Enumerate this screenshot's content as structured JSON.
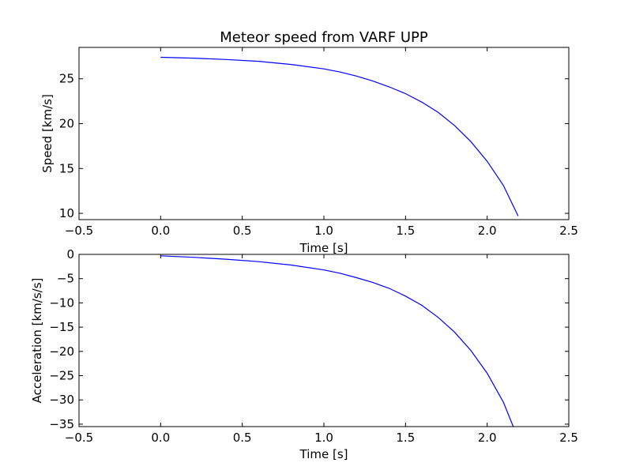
{
  "figure": {
    "title": "Meteor speed from  VARF UPP"
  },
  "chart_data": [
    {
      "type": "line",
      "title": "Meteor speed from  VARF UPP",
      "xlabel": "Time [s]",
      "ylabel": "Speed [km/s]",
      "xlim": [
        -0.5,
        2.5
      ],
      "ylim": [
        9.3,
        28.5
      ],
      "xticks": [
        -0.5,
        0.0,
        0.5,
        1.0,
        1.5,
        2.0,
        2.5
      ],
      "xtick_labels": [
        "−0.5",
        "0.0",
        "0.5",
        "1.0",
        "1.5",
        "2.0",
        "2.5"
      ],
      "yticks": [
        10,
        15,
        20,
        25
      ],
      "ytick_labels": [
        "10",
        "15",
        "20",
        "25"
      ],
      "grid": false,
      "line_color": "#0000ff",
      "series": [
        {
          "x": [
            0.0,
            0.2,
            0.4,
            0.6,
            0.8,
            1.0,
            1.1,
            1.2,
            1.3,
            1.4,
            1.5,
            1.6,
            1.7,
            1.8,
            1.9,
            2.0,
            2.1,
            2.19
          ],
          "values": [
            27.4,
            27.3,
            27.15,
            26.95,
            26.6,
            26.1,
            25.75,
            25.3,
            24.75,
            24.1,
            23.35,
            22.4,
            21.25,
            19.8,
            18.0,
            15.8,
            13.1,
            9.7
          ]
        }
      ]
    },
    {
      "type": "line",
      "title": "",
      "xlabel": "Time [s]",
      "ylabel": "Acceleration [km/s/s]",
      "xlim": [
        -0.5,
        2.5
      ],
      "ylim": [
        -35.5,
        0
      ],
      "xticks": [
        -0.5,
        0.0,
        0.5,
        1.0,
        1.5,
        2.0,
        2.5
      ],
      "xtick_labels": [
        "−0.5",
        "0.0",
        "0.5",
        "1.0",
        "1.5",
        "2.0",
        "2.5"
      ],
      "yticks": [
        0,
        -5,
        -10,
        -15,
        -20,
        -25,
        -30,
        -35
      ],
      "ytick_labels": [
        "0",
        "−5",
        "−10",
        "−15",
        "−20",
        "−25",
        "−30",
        "−35"
      ],
      "grid": false,
      "line_color": "#0000ff",
      "series": [
        {
          "x": [
            0.0,
            0.2,
            0.4,
            0.6,
            0.8,
            1.0,
            1.1,
            1.2,
            1.3,
            1.4,
            1.5,
            1.6,
            1.7,
            1.8,
            1.9,
            2.0,
            2.1,
            2.16
          ],
          "values": [
            -0.3,
            -0.6,
            -1.0,
            -1.5,
            -2.2,
            -3.2,
            -3.9,
            -4.8,
            -5.8,
            -7.0,
            -8.6,
            -10.5,
            -13.0,
            -16.0,
            -19.8,
            -24.5,
            -30.5,
            -35.5
          ]
        }
      ]
    }
  ]
}
